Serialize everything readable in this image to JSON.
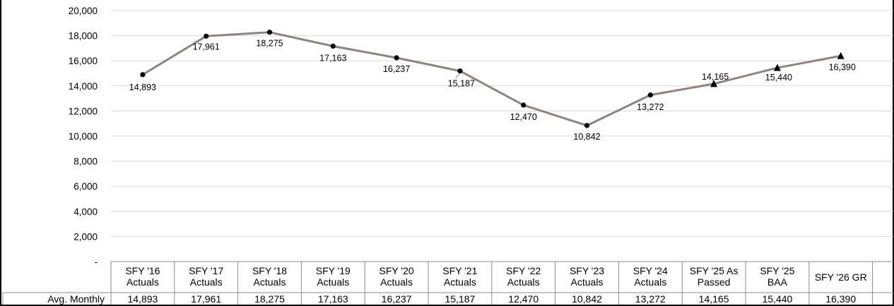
{
  "chart_data": {
    "type": "line",
    "categories": [
      [
        "SFY '16",
        "Actuals"
      ],
      [
        "SFY '17",
        "Actuals"
      ],
      [
        "SFY '18",
        "Actuals"
      ],
      [
        "SFY '19",
        "Actuals"
      ],
      [
        "SFY '20",
        "Actuals"
      ],
      [
        "SFY '21",
        "Actuals"
      ],
      [
        "SFY '22",
        "Actuals"
      ],
      [
        "SFY '23",
        "Actuals"
      ],
      [
        "SFY '24",
        "Actuals"
      ],
      [
        "SFY '25 As",
        "Passed"
      ],
      [
        "SFY '25",
        "BAA"
      ],
      [
        "SFY '26 GR"
      ]
    ],
    "series": [
      {
        "name": "Avg. Monthly",
        "values": [
          14893,
          17961,
          18275,
          17163,
          16237,
          15187,
          12470,
          10842,
          13272,
          14165,
          15440,
          16390
        ],
        "labels": [
          "14,893",
          "17,961",
          "18,275",
          "17,163",
          "16,237",
          "15,187",
          "12,470",
          "10,842",
          "13,272",
          "14,165",
          "15,440",
          "16,390"
        ],
        "markers": [
          "circle",
          "circle",
          "circle",
          "circle",
          "circle",
          "circle",
          "circle",
          "circle",
          "circle",
          "triangle",
          "triangle",
          "triangle"
        ],
        "color": "#8c8480"
      }
    ],
    "yticks": [
      "-",
      "2,000",
      "4,000",
      "6,000",
      "8,000",
      "10,000",
      "12,000",
      "14,000",
      "16,000",
      "18,000",
      "20,000"
    ],
    "ylim": [
      0,
      20000
    ],
    "grid": true,
    "data_table": true
  }
}
